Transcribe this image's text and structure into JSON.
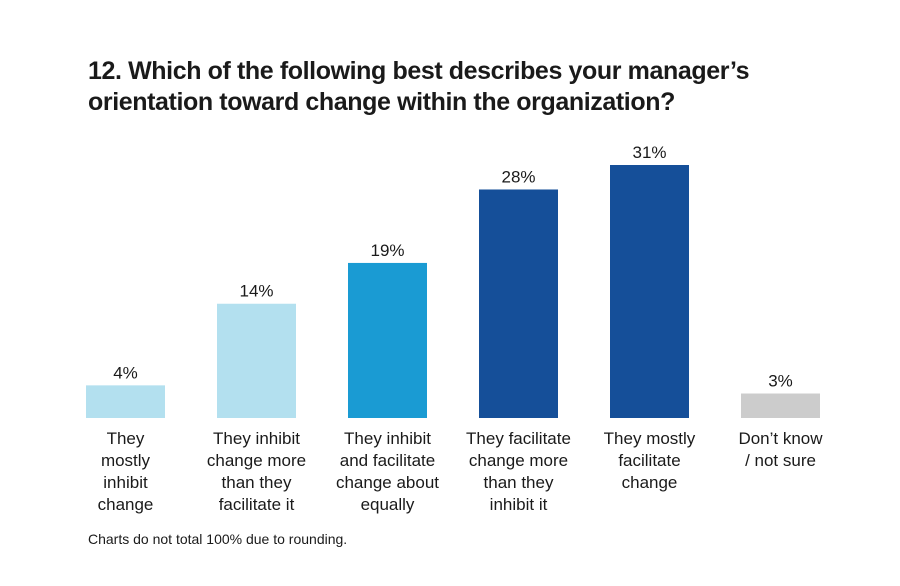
{
  "title_lines": [
    "12. Which of the following best describes your manager’s",
    "orientation toward change within the organization?"
  ],
  "footnote": "Charts do not total 100% due to rounding.",
  "chart_data": {
    "type": "bar",
    "title": "12. Which of the following best describes your manager’s orientation toward change within the organization?",
    "categories": [
      [
        "They",
        "mostly",
        "inhibit",
        "change"
      ],
      [
        "They inhibit",
        "change more",
        "than they",
        "facilitate it"
      ],
      [
        "They inhibit",
        "and facilitate",
        "change about",
        "equally"
      ],
      [
        "They facilitate",
        "change more",
        "than they",
        "inhibit it"
      ],
      [
        "They mostly",
        "facilitate",
        "change"
      ],
      [
        "Don’t know",
        "/ not sure"
      ]
    ],
    "values": [
      4,
      14,
      19,
      28,
      31,
      3
    ],
    "value_labels": [
      "4%",
      "14%",
      "19%",
      "28%",
      "31%",
      "3%"
    ],
    "colors": [
      "#b3e0ef",
      "#b3e0ef",
      "#1a9bd3",
      "#154f99",
      "#154f99",
      "#cccccc"
    ],
    "ylim": [
      0,
      31
    ],
    "grid": false,
    "legend": "none"
  }
}
